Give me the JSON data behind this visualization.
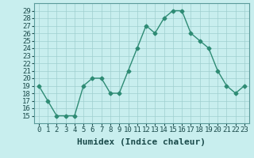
{
  "xlabel": "Humidex (Indice chaleur)",
  "x": [
    0,
    1,
    2,
    3,
    4,
    5,
    6,
    7,
    8,
    9,
    10,
    11,
    12,
    13,
    14,
    15,
    16,
    17,
    18,
    19,
    20,
    21,
    22,
    23
  ],
  "y": [
    19,
    17,
    15,
    15,
    15,
    19,
    20,
    20,
    18,
    18,
    21,
    24,
    27,
    26,
    28,
    29,
    29,
    26,
    25,
    24,
    21,
    19,
    18,
    19
  ],
  "line_color": "#2e8b74",
  "marker": "D",
  "marker_size": 2.5,
  "background_color": "#c8eeee",
  "grid_color": "#9fcfcf",
  "ylim": [
    14,
    30
  ],
  "yticks": [
    15,
    16,
    17,
    18,
    19,
    20,
    21,
    22,
    23,
    24,
    25,
    26,
    27,
    28,
    29
  ],
  "xlim": [
    -0.5,
    23.5
  ],
  "xlabel_fontsize": 8,
  "tick_fontsize": 6.5,
  "line_width": 1.0
}
